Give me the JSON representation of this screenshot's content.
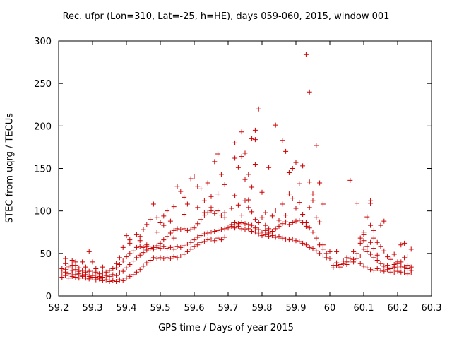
{
  "chart_data": {
    "type": "scatter",
    "title": "Rec. ufpr (Lon=310, Lat=-25, h=HE), days 059-060, 2015, window 001",
    "xlabel": "GPS time / Days of year 2015",
    "ylabel": "STEC from uqrg / TECUs",
    "xlim": [
      59.2,
      60.3
    ],
    "ylim": [
      0,
      300
    ],
    "xticks": [
      "59.2",
      "59.3",
      "59.4",
      "59.5",
      "59.6",
      "59.7",
      "59.8",
      "59.9",
      "60",
      "60.1",
      "60.2",
      "60.3"
    ],
    "yticks": [
      "0",
      "50",
      "100",
      "150",
      "200",
      "250",
      "300"
    ],
    "marker": "+",
    "color": "#cc0000",
    "points": [
      [
        59.21,
        22
      ],
      [
        59.22,
        24
      ],
      [
        59.23,
        21
      ],
      [
        59.24,
        23
      ],
      [
        59.25,
        22
      ],
      [
        59.26,
        21
      ],
      [
        59.27,
        23
      ],
      [
        59.28,
        21
      ],
      [
        59.29,
        20
      ],
      [
        59.3,
        22
      ],
      [
        59.31,
        19
      ],
      [
        59.32,
        20
      ],
      [
        59.33,
        18
      ],
      [
        59.34,
        19
      ],
      [
        59.35,
        17
      ],
      [
        59.36,
        18
      ],
      [
        59.37,
        17
      ],
      [
        59.38,
        19
      ],
      [
        59.39,
        18
      ],
      [
        59.4,
        21
      ],
      [
        59.41,
        23
      ],
      [
        59.42,
        25
      ],
      [
        59.43,
        28
      ],
      [
        59.44,
        31
      ],
      [
        59.45,
        35
      ],
      [
        59.46,
        39
      ],
      [
        59.47,
        42
      ],
      [
        59.48,
        45
      ],
      [
        59.49,
        44
      ],
      [
        59.5,
        45
      ],
      [
        59.51,
        44
      ],
      [
        59.52,
        45
      ],
      [
        59.53,
        44
      ],
      [
        59.54,
        46
      ],
      [
        59.55,
        45
      ],
      [
        59.56,
        47
      ],
      [
        59.57,
        49
      ],
      [
        59.58,
        52
      ],
      [
        59.59,
        55
      ],
      [
        59.6,
        58
      ],
      [
        59.61,
        60
      ],
      [
        59.62,
        63
      ],
      [
        59.63,
        64
      ],
      [
        59.64,
        66
      ],
      [
        59.65,
        67
      ],
      [
        59.66,
        65
      ],
      [
        59.67,
        68
      ],
      [
        59.68,
        66
      ],
      [
        59.69,
        69
      ],
      [
        59.21,
        27
      ],
      [
        59.22,
        28
      ],
      [
        59.23,
        26
      ],
      [
        59.24,
        27
      ],
      [
        59.25,
        25
      ],
      [
        59.26,
        26
      ],
      [
        59.27,
        24
      ],
      [
        59.28,
        25
      ],
      [
        59.29,
        23
      ],
      [
        59.3,
        24
      ],
      [
        59.31,
        22
      ],
      [
        59.32,
        23
      ],
      [
        59.33,
        22
      ],
      [
        59.34,
        24
      ],
      [
        59.35,
        23
      ],
      [
        59.36,
        25
      ],
      [
        59.37,
        24
      ],
      [
        59.38,
        27
      ],
      [
        59.39,
        29
      ],
      [
        59.4,
        33
      ],
      [
        59.41,
        37
      ],
      [
        59.42,
        41
      ],
      [
        59.43,
        45
      ],
      [
        59.44,
        48
      ],
      [
        59.45,
        51
      ],
      [
        59.46,
        54
      ],
      [
        59.47,
        56
      ],
      [
        59.48,
        55
      ],
      [
        59.49,
        57
      ],
      [
        59.5,
        56
      ],
      [
        59.51,
        58
      ],
      [
        59.52,
        56
      ],
      [
        59.53,
        57
      ],
      [
        59.54,
        55
      ],
      [
        59.55,
        58
      ],
      [
        59.56,
        57
      ],
      [
        59.57,
        59
      ],
      [
        59.58,
        61
      ],
      [
        59.59,
        63
      ],
      [
        59.6,
        66
      ],
      [
        59.61,
        69
      ],
      [
        59.62,
        71
      ],
      [
        59.63,
        73
      ],
      [
        59.64,
        74
      ],
      [
        59.65,
        75
      ],
      [
        59.66,
        76
      ],
      [
        59.67,
        77
      ],
      [
        59.68,
        78
      ],
      [
        59.69,
        79
      ],
      [
        59.7,
        80
      ],
      [
        59.21,
        32
      ],
      [
        59.22,
        31
      ],
      [
        59.23,
        33
      ],
      [
        59.24,
        30
      ],
      [
        59.25,
        31
      ],
      [
        59.26,
        29
      ],
      [
        59.27,
        30
      ],
      [
        59.28,
        28
      ],
      [
        59.29,
        29
      ],
      [
        59.3,
        27
      ],
      [
        59.31,
        28
      ],
      [
        59.32,
        26
      ],
      [
        59.33,
        27
      ],
      [
        59.34,
        28
      ],
      [
        59.35,
        30
      ],
      [
        59.36,
        32
      ],
      [
        59.37,
        33
      ],
      [
        59.38,
        37
      ],
      [
        59.39,
        41
      ],
      [
        59.4,
        46
      ],
      [
        59.41,
        50
      ],
      [
        59.42,
        53
      ],
      [
        59.43,
        57
      ],
      [
        59.44,
        58
      ],
      [
        59.45,
        57
      ],
      [
        59.46,
        58
      ],
      [
        59.47,
        56
      ],
      [
        59.48,
        57
      ],
      [
        59.49,
        59
      ],
      [
        59.5,
        62
      ],
      [
        59.51,
        66
      ],
      [
        59.52,
        70
      ],
      [
        59.53,
        74
      ],
      [
        59.54,
        77
      ],
      [
        59.55,
        79
      ],
      [
        59.56,
        78
      ],
      [
        59.57,
        79
      ],
      [
        59.58,
        77
      ],
      [
        59.59,
        78
      ],
      [
        59.6,
        80
      ],
      [
        59.61,
        85
      ],
      [
        59.62,
        90
      ],
      [
        59.63,
        95
      ],
      [
        59.64,
        98
      ],
      [
        59.65,
        100
      ],
      [
        59.66,
        97
      ],
      [
        59.67,
        100
      ],
      [
        59.68,
        95
      ],
      [
        59.69,
        98
      ],
      [
        59.22,
        38
      ],
      [
        59.23,
        35
      ],
      [
        59.24,
        42
      ],
      [
        59.25,
        36
      ],
      [
        59.26,
        33
      ],
      [
        59.27,
        40
      ],
      [
        59.28,
        34
      ],
      [
        59.3,
        40
      ],
      [
        59.31,
        32
      ],
      [
        59.33,
        34
      ],
      [
        59.35,
        30
      ],
      [
        59.37,
        38
      ],
      [
        59.38,
        45
      ],
      [
        59.39,
        57
      ],
      [
        59.4,
        71
      ],
      [
        59.41,
        62
      ],
      [
        59.43,
        72
      ],
      [
        59.44,
        65
      ],
      [
        59.45,
        78
      ],
      [
        59.46,
        84
      ],
      [
        59.47,
        90
      ],
      [
        59.48,
        108
      ],
      [
        59.49,
        92
      ],
      [
        59.5,
        86
      ],
      [
        59.51,
        94
      ],
      [
        59.52,
        100
      ],
      [
        59.53,
        88
      ],
      [
        59.54,
        105
      ],
      [
        59.55,
        129
      ],
      [
        59.56,
        123
      ],
      [
        59.57,
        116
      ],
      [
        59.58,
        108
      ],
      [
        59.59,
        138
      ],
      [
        59.6,
        140
      ],
      [
        59.61,
        129
      ],
      [
        59.62,
        126
      ],
      [
        59.63,
        112
      ],
      [
        59.64,
        133
      ],
      [
        59.65,
        117
      ],
      [
        59.66,
        158
      ],
      [
        59.67,
        167
      ],
      [
        59.68,
        143
      ],
      [
        59.69,
        131
      ],
      [
        59.22,
        44
      ],
      [
        59.24,
        36
      ],
      [
        59.25,
        40
      ],
      [
        59.29,
        52
      ],
      [
        59.41,
        66
      ],
      [
        59.44,
        70
      ],
      [
        59.46,
        60
      ],
      [
        59.49,
        75
      ],
      [
        59.51,
        83
      ],
      [
        59.54,
        68
      ],
      [
        59.57,
        96
      ],
      [
        59.61,
        104
      ],
      [
        59.63,
        98
      ],
      [
        59.65,
        104
      ],
      [
        59.67,
        120
      ],
      [
        59.69,
        92
      ],
      [
        59.71,
        82
      ],
      [
        59.72,
        80
      ],
      [
        59.73,
        82
      ],
      [
        59.74,
        79
      ],
      [
        59.75,
        78
      ],
      [
        59.76,
        79
      ],
      [
        59.77,
        76
      ],
      [
        59.78,
        75
      ],
      [
        59.79,
        73
      ],
      [
        59.8,
        71
      ],
      [
        59.81,
        72
      ],
      [
        59.82,
        70
      ],
      [
        59.83,
        71
      ],
      [
        59.84,
        69
      ],
      [
        59.85,
        70
      ],
      [
        59.86,
        68
      ],
      [
        59.87,
        67
      ],
      [
        59.88,
        66
      ],
      [
        59.89,
        67
      ],
      [
        59.9,
        65
      ],
      [
        59.91,
        64
      ],
      [
        59.92,
        62
      ],
      [
        59.93,
        60
      ],
      [
        59.94,
        57
      ],
      [
        59.95,
        56
      ],
      [
        59.96,
        53
      ],
      [
        59.97,
        50
      ],
      [
        59.98,
        47
      ],
      [
        59.99,
        45
      ],
      [
        60.0,
        44
      ],
      [
        59.71,
        84
      ],
      [
        59.72,
        86
      ],
      [
        59.73,
        85
      ],
      [
        59.74,
        86
      ],
      [
        59.75,
        85
      ],
      [
        59.76,
        84
      ],
      [
        59.77,
        83
      ],
      [
        59.78,
        80
      ],
      [
        59.79,
        78
      ],
      [
        59.8,
        75
      ],
      [
        59.81,
        77
      ],
      [
        59.82,
        74
      ],
      [
        59.83,
        76
      ],
      [
        59.84,
        79
      ],
      [
        59.85,
        82
      ],
      [
        59.86,
        85
      ],
      [
        59.87,
        87
      ],
      [
        59.88,
        84
      ],
      [
        59.89,
        86
      ],
      [
        59.9,
        88
      ],
      [
        59.91,
        89
      ],
      [
        59.92,
        86
      ],
      [
        59.93,
        82
      ],
      [
        59.94,
        80
      ],
      [
        59.95,
        75
      ],
      [
        59.96,
        68
      ],
      [
        59.97,
        60
      ],
      [
        59.98,
        55
      ],
      [
        59.99,
        50
      ],
      [
        59.71,
        103
      ],
      [
        59.72,
        118
      ],
      [
        59.73,
        107
      ],
      [
        59.74,
        95
      ],
      [
        59.75,
        112
      ],
      [
        59.76,
        104
      ],
      [
        59.77,
        99
      ],
      [
        59.78,
        90
      ],
      [
        59.79,
        86
      ],
      [
        59.8,
        92
      ],
      [
        59.81,
        83
      ],
      [
        59.82,
        79
      ],
      [
        59.83,
        94
      ],
      [
        59.84,
        101
      ],
      [
        59.85,
        89
      ],
      [
        59.86,
        108
      ],
      [
        59.87,
        95
      ],
      [
        59.88,
        120
      ],
      [
        59.89,
        115
      ],
      [
        59.9,
        103
      ],
      [
        59.91,
        110
      ],
      [
        59.92,
        96
      ],
      [
        59.93,
        86
      ],
      [
        59.94,
        104
      ],
      [
        59.95,
        120
      ],
      [
        59.96,
        92
      ],
      [
        59.97,
        87
      ],
      [
        59.98,
        60
      ],
      [
        59.72,
        180
      ],
      [
        59.72,
        162
      ],
      [
        59.73,
        151
      ],
      [
        59.74,
        193
      ],
      [
        59.74,
        164
      ],
      [
        59.75,
        168
      ],
      [
        59.75,
        137
      ],
      [
        59.76,
        113
      ],
      [
        59.76,
        143
      ],
      [
        59.77,
        185
      ],
      [
        59.77,
        128
      ],
      [
        59.78,
        195
      ],
      [
        59.78,
        184
      ],
      [
        59.78,
        155
      ],
      [
        59.79,
        220
      ],
      [
        59.8,
        122
      ],
      [
        59.81,
        98
      ],
      [
        59.82,
        151
      ],
      [
        59.84,
        201
      ],
      [
        59.86,
        183
      ],
      [
        59.87,
        170
      ],
      [
        59.88,
        145
      ],
      [
        59.89,
        150
      ],
      [
        59.9,
        157
      ],
      [
        59.91,
        132
      ],
      [
        59.92,
        153
      ],
      [
        59.93,
        284
      ],
      [
        59.94,
        240
      ],
      [
        59.94,
        134
      ],
      [
        59.95,
        112
      ],
      [
        59.96,
        177
      ],
      [
        59.97,
        133
      ],
      [
        59.98,
        108
      ],
      [
        60.01,
        33
      ],
      [
        60.02,
        36
      ],
      [
        60.03,
        34
      ],
      [
        60.04,
        38
      ],
      [
        60.05,
        37
      ],
      [
        60.06,
        41
      ],
      [
        60.07,
        40
      ],
      [
        60.08,
        44
      ],
      [
        60.09,
        38
      ],
      [
        60.1,
        35
      ],
      [
        60.11,
        33
      ],
      [
        60.12,
        31
      ],
      [
        60.13,
        30
      ],
      [
        60.14,
        32
      ],
      [
        60.15,
        30
      ],
      [
        60.16,
        29
      ],
      [
        60.17,
        31
      ],
      [
        60.18,
        28
      ],
      [
        60.19,
        27
      ],
      [
        60.2,
        29
      ],
      [
        60.21,
        28
      ],
      [
        60.22,
        27
      ],
      [
        60.23,
        26
      ],
      [
        60.24,
        27
      ],
      [
        60.01,
        36
      ],
      [
        60.02,
        39
      ],
      [
        60.03,
        37
      ],
      [
        60.04,
        41
      ],
      [
        60.05,
        40
      ],
      [
        60.06,
        44
      ],
      [
        60.07,
        43
      ],
      [
        60.08,
        50
      ],
      [
        60.09,
        47
      ],
      [
        60.1,
        55
      ],
      [
        60.11,
        52
      ],
      [
        60.12,
        49
      ],
      [
        60.13,
        45
      ],
      [
        60.14,
        42
      ],
      [
        60.15,
        38
      ],
      [
        60.16,
        35
      ],
      [
        60.17,
        33
      ],
      [
        60.18,
        32
      ],
      [
        60.19,
        34
      ],
      [
        60.2,
        33
      ],
      [
        60.21,
        35
      ],
      [
        60.22,
        34
      ],
      [
        60.23,
        32
      ],
      [
        60.24,
        30
      ],
      [
        60.0,
        52
      ],
      [
        60.02,
        52
      ],
      [
        60.05,
        45
      ],
      [
        60.07,
        52
      ],
      [
        60.09,
        68
      ],
      [
        60.09,
        62
      ],
      [
        60.1,
        75
      ],
      [
        60.1,
        65
      ],
      [
        60.11,
        93
      ],
      [
        60.11,
        58
      ],
      [
        60.12,
        112
      ],
      [
        60.12,
        83
      ],
      [
        60.12,
        63
      ],
      [
        60.13,
        77
      ],
      [
        60.13,
        56
      ],
      [
        60.14,
        48
      ],
      [
        60.15,
        83
      ],
      [
        60.15,
        58
      ],
      [
        60.16,
        88
      ],
      [
        60.16,
        53
      ],
      [
        60.17,
        46
      ],
      [
        60.18,
        43
      ],
      [
        60.19,
        49
      ],
      [
        60.2,
        40
      ],
      [
        60.21,
        60
      ],
      [
        60.22,
        62
      ],
      [
        60.22,
        45
      ],
      [
        60.23,
        47
      ],
      [
        60.24,
        55
      ],
      [
        60.24,
        34
      ],
      [
        60.06,
        136
      ],
      [
        60.08,
        109
      ],
      [
        60.1,
        72
      ],
      [
        60.12,
        109
      ],
      [
        60.13,
        68
      ],
      [
        60.14,
        63
      ],
      [
        60.17,
        36
      ],
      [
        60.19,
        37
      ],
      [
        60.2,
        38
      ],
      [
        60.21,
        40
      ],
      [
        60.23,
        36
      ]
    ]
  }
}
